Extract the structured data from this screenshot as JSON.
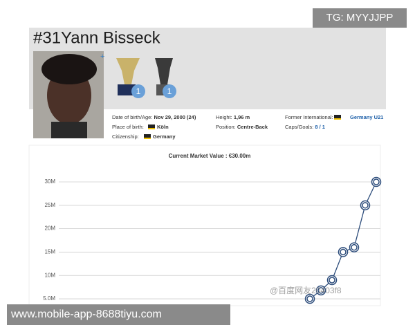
{
  "overlay": {
    "tg": "TG: MYYJJPP",
    "site": "www.mobile-app-8688tiyu.com",
    "watermark": "@百度网友20403f8"
  },
  "header": {
    "number": "#31",
    "name": "Yann Bisseck",
    "trophies": [
      1,
      1
    ]
  },
  "info": {
    "birth_label": "Date of birth/Age:",
    "birth": "Nov 29, 2000 (24)",
    "place_label": "Place of birth:",
    "place": "Köln",
    "citizenship_label": "Citizenship:",
    "citizenship": "Germany",
    "height_label": "Height:",
    "height": "1,96 m",
    "position_label": "Position:",
    "position": "Centre-Back",
    "international_label": "Former International:",
    "international": "Germany U21",
    "caps_label": "Caps/Goals:",
    "caps": "8 / 1"
  },
  "chart_data": {
    "type": "line",
    "title": "Current Market Value : €30.00m",
    "categories": [
      null,
      null,
      null,
      null,
      null,
      null,
      null
    ],
    "series": [
      {
        "color": "#2b4b7a",
        "values": [
          5,
          6.8,
          9,
          15,
          16,
          25,
          30
        ]
      }
    ],
    "ylim": [
      4,
      32
    ],
    "yticks": [
      {
        "value": 5,
        "label": "5.0M"
      },
      {
        "value": 10,
        "label": "10M"
      },
      {
        "value": 15,
        "label": "15M"
      },
      {
        "value": 20,
        "label": "20M"
      },
      {
        "value": 25,
        "label": "25M"
      },
      {
        "value": 30,
        "label": "30M"
      }
    ],
    "grid": true
  }
}
